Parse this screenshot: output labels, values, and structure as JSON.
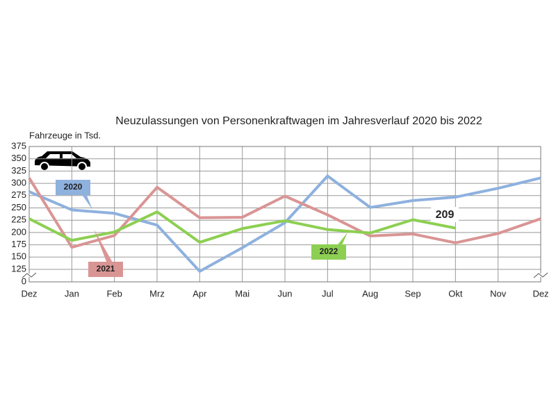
{
  "chart_data": {
    "type": "line",
    "title": "Neuzulassungen von Personenkraftwagen im Jahresverlauf 2020 bis 2022",
    "y_label": "Fahrzeuge in Tsd.",
    "categories": [
      "Dez",
      "Jan",
      "Feb",
      "Mrz",
      "Apr",
      "Mai",
      "Jun",
      "Jul",
      "Aug",
      "Sep",
      "Okt",
      "Nov",
      "Dez"
    ],
    "series": [
      {
        "name": "2020",
        "color": "#8eb1de",
        "values": [
          283,
          246,
          239,
          215,
          121,
          169,
          220,
          315,
          251,
          265,
          272,
          290,
          311
        ]
      },
      {
        "name": "2021",
        "color": "#d99594",
        "values": [
          311,
          170,
          194,
          292,
          230,
          231,
          274,
          236,
          193,
          197,
          179,
          198,
          228
        ]
      },
      {
        "name": "2022",
        "color": "#8dcf52",
        "values": [
          228,
          184,
          201,
          242,
          180,
          208,
          224,
          206,
          199,
          226,
          209,
          null,
          null
        ]
      }
    ],
    "annotations": [
      {
        "text": "209"
      }
    ],
    "ylim": [
      0,
      375
    ],
    "axis_break": [
      0,
      125
    ],
    "yticks": [
      0,
      125,
      150,
      175,
      200,
      225,
      250,
      275,
      300,
      325,
      350,
      375
    ],
    "grid": true
  }
}
